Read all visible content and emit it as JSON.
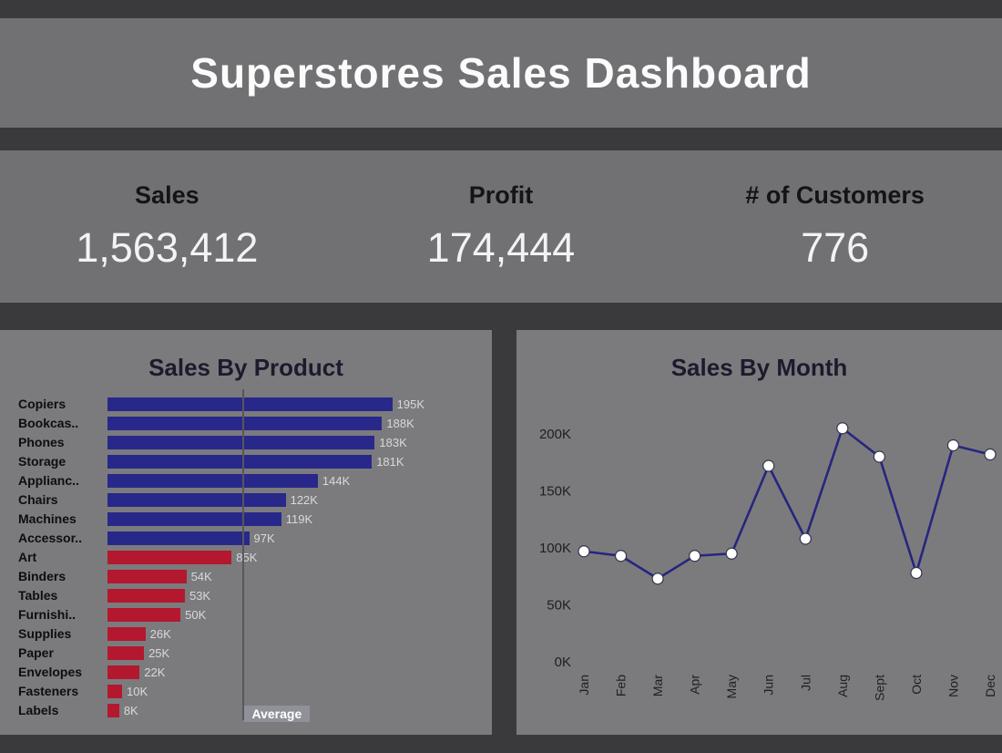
{
  "page": {
    "title": "Superstores Sales Dashboard"
  },
  "kpis": [
    {
      "label": "Sales",
      "value": "1,563,412"
    },
    {
      "label": "Profit",
      "value": "174,444"
    },
    {
      "label": "# of Customers",
      "value": "776"
    }
  ],
  "chart_data": [
    {
      "type": "bar",
      "title": "Sales By Product",
      "orientation": "horizontal",
      "categories": [
        "Copiers",
        "Bookcas..",
        "Phones",
        "Storage",
        "Applianc..",
        "Chairs",
        "Machines",
        "Accessor..",
        "Art",
        "Binders",
        "Tables",
        "Furnishi..",
        "Supplies",
        "Paper",
        "Envelopes",
        "Fasteners",
        "Labels"
      ],
      "values": [
        195,
        188,
        183,
        181,
        144,
        122,
        119,
        97,
        85,
        54,
        53,
        50,
        26,
        25,
        22,
        10,
        8
      ],
      "value_labels": [
        "195K",
        "188K",
        "183K",
        "181K",
        "144K",
        "122K",
        "119K",
        "97K",
        "85K",
        "54K",
        "53K",
        "50K",
        "26K",
        "25K",
        "22K",
        "10K",
        "8K"
      ],
      "unit": "K",
      "xlim": [
        0,
        242
      ],
      "average": 92,
      "average_label": "Average",
      "colors": {
        "above_average": "#28288a",
        "below_average": "#b3182f"
      }
    },
    {
      "type": "line",
      "title": "Sales By Month",
      "categories": [
        "Jan",
        "Feb",
        "Mar",
        "Apr",
        "May",
        "Jun",
        "Jul",
        "Aug",
        "Sept",
        "Oct",
        "Nov",
        "Dec"
      ],
      "values": [
        97,
        93,
        73,
        93,
        95,
        172,
        108,
        205,
        180,
        78,
        190,
        182
      ],
      "unit": "K",
      "ylim": [
        0,
        220
      ],
      "yticks": [
        0,
        50,
        100,
        150,
        200
      ],
      "ytick_labels": [
        "0K",
        "50K",
        "100K",
        "150K",
        "200K"
      ],
      "line_color": "#26267e",
      "marker_fill": "#ffffff",
      "marker_stroke": "#33334d",
      "legend": "none",
      "grid": "off"
    }
  ]
}
